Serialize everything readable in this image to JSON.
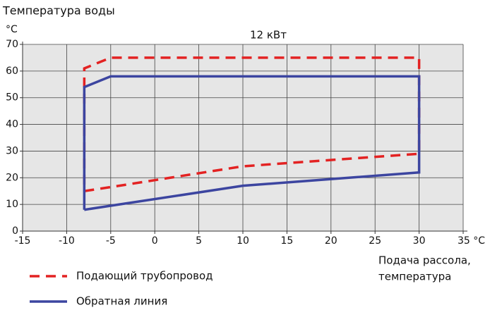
{
  "chart_data": {
    "type": "line",
    "title": "12 кВт",
    "y_label": "Температура воды",
    "y_unit": "°C",
    "x_label": [
      "Подача рассола,",
      "температура"
    ],
    "xlim": [
      -15,
      35
    ],
    "ylim": [
      0,
      70
    ],
    "xticks": [
      -15,
      -10,
      -5,
      0,
      5,
      10,
      15,
      20,
      25,
      30,
      {
        "value": 35,
        "label": "35 °C"
      }
    ],
    "yticks": [
      0,
      10,
      20,
      30,
      40,
      50,
      60,
      70
    ],
    "grid": true,
    "series": [
      {
        "name": "Подающий трубопровод",
        "color": "#e32222",
        "dashed": true,
        "x": [
          -8,
          -5,
          10,
          30,
          30,
          -5,
          -8,
          -8
        ],
        "values": [
          15,
          16.5,
          24.3,
          29,
          65,
          65,
          61,
          15
        ]
      },
      {
        "name": "Обратная линия",
        "color": "#3c45a0",
        "dashed": false,
        "x": [
          -8,
          -5,
          10,
          30,
          30,
          -5,
          -8,
          -8
        ],
        "values": [
          8,
          9.5,
          17,
          22,
          58,
          58,
          54,
          8
        ]
      }
    ]
  }
}
